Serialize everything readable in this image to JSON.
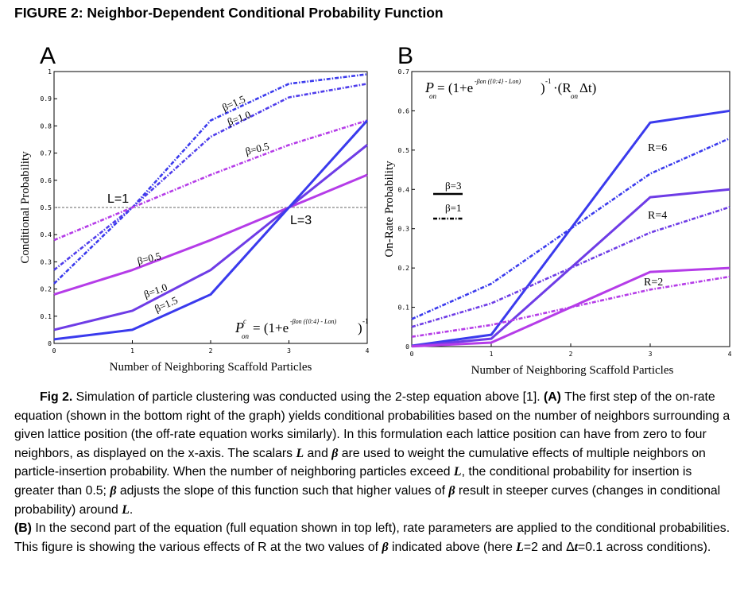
{
  "figure": {
    "title": "FIGURE 2: Neighbor-Dependent Conditional Probability Function"
  },
  "colors": {
    "blue": "#3a3aed",
    "indigo": "#6e3ce6",
    "magenta": "#b53ce8",
    "ref_line": "#666666"
  },
  "chart_data": [
    {
      "panel_label": "A",
      "type": "line",
      "xlabel": "Number of Neighboring Scaffold Particles",
      "ylabel": "Conditional Probability",
      "xlim": [
        0,
        4
      ],
      "ylim": [
        0,
        1
      ],
      "x_ticks": [
        "0",
        "1",
        "2",
        "3",
        "4"
      ],
      "y_ticks": [
        "0",
        "0.1",
        "0.2",
        "0.3",
        "0.4",
        "0.5",
        "0.6",
        "0.7",
        "0.8",
        "0.9",
        "1"
      ],
      "x": [
        0,
        1,
        2,
        3,
        4
      ],
      "reference_line": {
        "y": 0.5,
        "style": "dashed"
      },
      "series": [
        {
          "label": "L=1, β=1.5",
          "color": "#3a3aed",
          "style": "dashed",
          "values": [
            0.22,
            0.5,
            0.82,
            0.955,
            0.99
          ]
        },
        {
          "label": "L=1, β=1.0",
          "color": "#4f3deb",
          "style": "dashed",
          "values": [
            0.27,
            0.5,
            0.76,
            0.905,
            0.955
          ]
        },
        {
          "label": "L=1, β=0.5",
          "color": "#b53ce8",
          "style": "dashed",
          "values": [
            0.38,
            0.5,
            0.62,
            0.73,
            0.82
          ]
        },
        {
          "label": "L=3, β=0.5",
          "color": "#b53ce8",
          "style": "solid",
          "values": [
            0.18,
            0.27,
            0.38,
            0.5,
            0.62
          ]
        },
        {
          "label": "L=3, β=1.0",
          "color": "#6e3ce6",
          "style": "solid",
          "values": [
            0.05,
            0.12,
            0.27,
            0.5,
            0.73
          ]
        },
        {
          "label": "L=3, β=1.5",
          "color": "#3a3aed",
          "style": "solid",
          "values": [
            0.015,
            0.05,
            0.18,
            0.5,
            0.82
          ]
        }
      ],
      "annotations": {
        "L1": "L=1",
        "L3": "L=3",
        "b15_top": "β=1.5",
        "b10_top": "β=1.0",
        "b05_top": "β=0.5",
        "b05_bot": "β=0.5",
        "b10_bot": "β=1.0",
        "b15_bot": "β=1.5",
        "eq_lhs": "P",
        "eq_sup": "c",
        "eq_sub": "on",
        "eq_mid": " = (1+e",
        "eq_exp": "-βon ({0:4} - Lon)",
        "eq_close": ")",
        "eq_pow": "-1"
      }
    },
    {
      "panel_label": "B",
      "type": "line",
      "xlabel": "Number of Neighboring Scaffold Particles",
      "ylabel": "On-Rate Probability",
      "xlim": [
        0,
        4
      ],
      "ylim": [
        0,
        0.7
      ],
      "x_ticks": [
        "0",
        "1",
        "2",
        "3",
        "4"
      ],
      "y_ticks": [
        "0",
        "0.1",
        "0.2",
        "0.3",
        "0.4",
        "0.5",
        "0.6",
        "0.7"
      ],
      "x": [
        0,
        1,
        2,
        3,
        4
      ],
      "series": [
        {
          "label": "R=6, β=3",
          "color": "#3a3aed",
          "style": "solid",
          "values": [
            0.002,
            0.03,
            0.3,
            0.57,
            0.6
          ]
        },
        {
          "label": "R=4, β=3",
          "color": "#6e3ce6",
          "style": "solid",
          "values": [
            0.001,
            0.02,
            0.2,
            0.38,
            0.4
          ]
        },
        {
          "label": "R=2, β=3",
          "color": "#b53ce8",
          "style": "solid",
          "values": [
            0.0005,
            0.01,
            0.1,
            0.19,
            0.2
          ]
        },
        {
          "label": "R=6, β=1",
          "color": "#3a3aed",
          "style": "dashed",
          "values": [
            0.07,
            0.16,
            0.3,
            0.44,
            0.53
          ]
        },
        {
          "label": "R=4, β=1",
          "color": "#6e3ce6",
          "style": "dashed",
          "values": [
            0.05,
            0.11,
            0.2,
            0.29,
            0.355
          ]
        },
        {
          "label": "R=2, β=1",
          "color": "#b53ce8",
          "style": "dashed",
          "values": [
            0.025,
            0.055,
            0.1,
            0.145,
            0.178
          ]
        }
      ],
      "annotations": {
        "R6": "R=6",
        "R4": "R=4",
        "R2": "R=2",
        "legend_b3": "β=3",
        "legend_b1": "β=1",
        "eq_lhs": "P",
        "eq_sub": "on",
        "eq_mid": "= (1+e",
        "eq_exp": "-βon ({0:4} - Lon)",
        "eq_close": ")",
        "eq_pow": "-1",
        "eq_tail": "·(R",
        "eq_tail_sub": "on",
        "eq_tail_end": "Δt)"
      }
    }
  ],
  "caption": {
    "p1": "Simulation of particle clustering was conducted using the 2-step equation above [1].",
    "fig_ref": "Fig 2.",
    "a_tag": "(A)",
    "a_text": "The first step of the on-rate equation (shown in the bottom right of the graph) yields conditional probabilities based on the number of neighbors surrounding a given lattice position (the off-rate equation works similarly). In this formulation each lattice position can have from zero to four neighbors, as displayed on the x-axis. The scalars",
    "L_sym": "L",
    "and_word": "and",
    "beta_sym": "β",
    "a_text2": "are used to weight the cumulative effects of multiple neighbors on particle-insertion probability. When the number of neighboring particles exceed",
    "a_text3": ", the conditional probability for insertion is greater than 0.5;",
    "a_text4": "adjusts the slope of this function such that higher values of",
    "a_text5": "result in steeper curves (changes in conditional probability) around",
    "period": ".",
    "b_tag": "(B)",
    "b_text": "In the second part of the equation (full equation shown in top left), rate parameters are applied to the conditional probabilities. This figure is showing the various effects of R at the two values of",
    "b_text2": "indicated above (here",
    "L_eq": "L",
    "eq2": "=2 and Δ",
    "t_sym": "t",
    "b_text3": "=0.1 across conditions)."
  }
}
